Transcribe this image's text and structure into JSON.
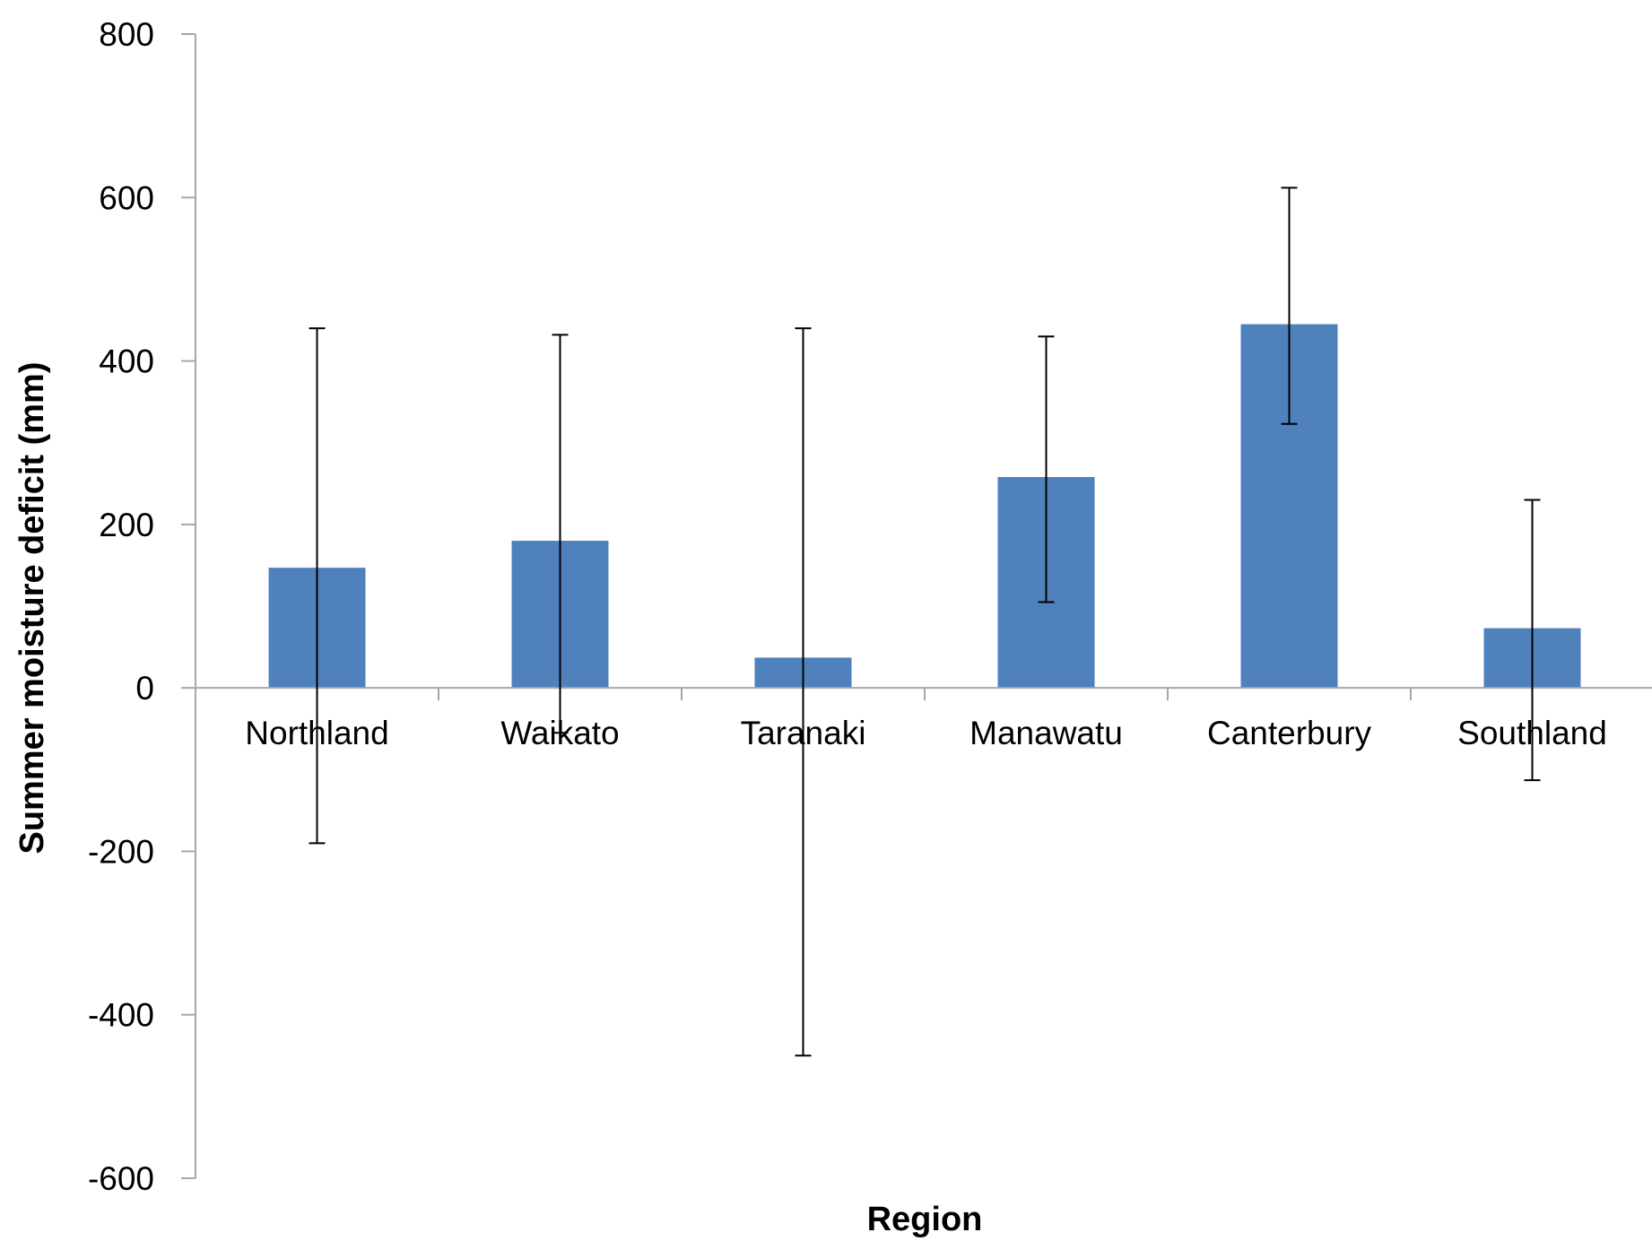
{
  "chart_data": {
    "type": "bar",
    "title": "",
    "xlabel": "Region",
    "ylabel": "Summer moisture deficit (mm)",
    "ylim": [
      -600,
      800
    ],
    "yticks": [
      800,
      600,
      400,
      200,
      0,
      -200,
      -400,
      -600
    ],
    "ytick_labels": [
      "800",
      "600",
      "400",
      "200",
      "0",
      "-200",
      "-400",
      "-600"
    ],
    "categories": [
      "Northland",
      "Waikato",
      "Taranaki",
      "Manawatu",
      "Canterbury",
      "Southland"
    ],
    "values": [
      147,
      180,
      37,
      258,
      445,
      73
    ],
    "error_upper": [
      440,
      432,
      440,
      430,
      612,
      230
    ],
    "error_lower": [
      -190,
      -55,
      -450,
      105,
      323,
      -113
    ],
    "grid": false,
    "legend": "none",
    "bar_color": "#4F81BD",
    "axis_color": "#A6A6A6",
    "error_bar_color": "#000000"
  }
}
